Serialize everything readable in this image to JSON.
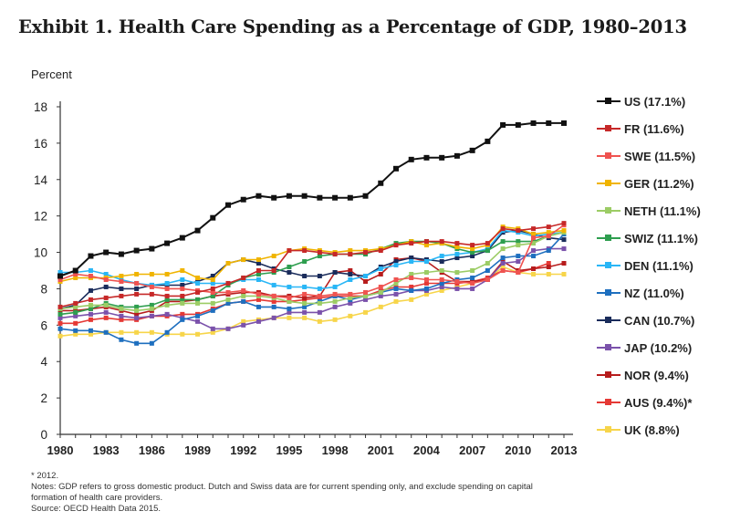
{
  "page": {
    "title": "Exhibit 1. Health Care Spending as a Percentage of GDP, 1980–2013",
    "footnotes": [
      "* 2012.",
      "Notes: GDP refers to gross domestic product. Dutch and Swiss data are for current spending only, and exclude spending on capital",
      "formation of health care providers.",
      "Source: OECD Health Data 2015."
    ]
  },
  "chart_data": {
    "type": "line",
    "title": "Exhibit 1. Health Care Spending as a Percentage of GDP, 1980–2013",
    "xlabel": "",
    "ylabel": "Percent",
    "ylim": [
      0,
      18
    ],
    "xlim": [
      1980,
      2013
    ],
    "yticks": [
      0,
      2,
      4,
      6,
      8,
      10,
      12,
      14,
      16,
      18
    ],
    "xticks": [
      1980,
      1983,
      1986,
      1989,
      1992,
      1995,
      1998,
      2001,
      2004,
      2007,
      2010,
      2013
    ],
    "grid": false,
    "legend_position": "right",
    "x": [
      1980,
      1981,
      1982,
      1983,
      1984,
      1985,
      1986,
      1987,
      1988,
      1989,
      1990,
      1991,
      1992,
      1993,
      1994,
      1995,
      1996,
      1997,
      1998,
      1999,
      2000,
      2001,
      2002,
      2003,
      2004,
      2005,
      2006,
      2007,
      2008,
      2009,
      2010,
      2011,
      2012,
      2013
    ],
    "series": [
      {
        "name": "US (17.1%)",
        "color": "#111111",
        "values": [
          8.7,
          9.0,
          9.8,
          10.0,
          9.9,
          10.1,
          10.2,
          10.5,
          10.8,
          11.2,
          11.9,
          12.6,
          12.9,
          13.1,
          13.0,
          13.1,
          13.1,
          13.0,
          13.0,
          13.0,
          13.1,
          13.8,
          14.6,
          15.1,
          15.2,
          15.2,
          15.3,
          15.6,
          16.1,
          17.0,
          17.0,
          17.1,
          17.1,
          17.1
        ]
      },
      {
        "name": "FR (11.6%)",
        "color": "#c62828",
        "values": [
          7.0,
          7.2,
          7.4,
          7.5,
          7.6,
          7.7,
          7.7,
          7.6,
          7.6,
          7.8,
          8.0,
          8.3,
          8.6,
          9.0,
          9.0,
          10.1,
          10.1,
          10.0,
          9.9,
          9.9,
          10.0,
          10.1,
          10.4,
          10.5,
          10.6,
          10.6,
          10.5,
          10.4,
          10.5,
          11.3,
          11.2,
          11.3,
          11.4,
          11.6
        ]
      },
      {
        "name": "SWE (11.5%)",
        "color": "#ef5350",
        "values": [
          8.5,
          8.8,
          8.7,
          8.5,
          8.4,
          8.3,
          8.1,
          8.0,
          8.0,
          7.9,
          7.8,
          7.8,
          7.9,
          7.7,
          7.6,
          7.5,
          7.7,
          7.6,
          7.7,
          7.7,
          7.8,
          8.1,
          8.5,
          8.6,
          8.5,
          8.5,
          8.4,
          8.3,
          8.5,
          9.0,
          8.9,
          10.8,
          10.9,
          11.5
        ]
      },
      {
        "name": "GER (11.2%)",
        "color": "#f0b400",
        "values": [
          8.4,
          8.6,
          8.6,
          8.6,
          8.7,
          8.8,
          8.8,
          8.8,
          9.0,
          8.6,
          8.5,
          9.4,
          9.6,
          9.6,
          9.8,
          10.1,
          10.2,
          10.1,
          10.0,
          10.1,
          10.1,
          10.2,
          10.4,
          10.6,
          10.4,
          10.5,
          10.3,
          10.2,
          10.4,
          11.4,
          11.3,
          11.0,
          11.1,
          11.2
        ]
      },
      {
        "name": "NETH (11.1%)",
        "color": "#9ccc65",
        "values": [
          6.9,
          7.0,
          7.1,
          7.1,
          6.9,
          6.8,
          6.9,
          7.1,
          7.2,
          7.2,
          7.2,
          7.4,
          7.6,
          7.6,
          7.5,
          7.3,
          7.2,
          7.2,
          7.3,
          7.5,
          7.6,
          7.8,
          8.3,
          8.8,
          8.9,
          9.0,
          8.9,
          9.0,
          9.4,
          10.2,
          10.4,
          10.5,
          10.9,
          11.1
        ]
      },
      {
        "name": "SWIZ (11.1%)",
        "color": "#2e9e4f",
        "values": [
          6.6,
          6.7,
          6.9,
          7.2,
          7.0,
          7.0,
          7.1,
          7.4,
          7.4,
          7.4,
          7.6,
          8.2,
          8.6,
          8.8,
          8.9,
          9.2,
          9.5,
          9.8,
          9.9,
          9.9,
          9.9,
          10.2,
          10.5,
          10.6,
          10.6,
          10.5,
          10.2,
          10.0,
          10.1,
          10.6,
          10.6,
          10.6,
          10.9,
          11.1
        ]
      },
      {
        "name": "DEN (11.1%)",
        "color": "#29b6f6",
        "values": [
          8.9,
          8.9,
          9.0,
          8.8,
          8.5,
          8.3,
          8.2,
          8.3,
          8.5,
          8.3,
          8.3,
          8.3,
          8.5,
          8.5,
          8.2,
          8.1,
          8.1,
          8.0,
          8.1,
          8.5,
          8.7,
          9.1,
          9.3,
          9.5,
          9.5,
          9.8,
          9.9,
          10.0,
          10.2,
          11.2,
          11.1,
          10.9,
          11.0,
          11.1
        ]
      },
      {
        "name": "NZ (11.0%)",
        "color": "#1e6fbf",
        "values": [
          5.8,
          5.7,
          5.7,
          5.6,
          5.2,
          5.0,
          5.0,
          5.6,
          6.3,
          6.5,
          6.8,
          7.2,
          7.3,
          7.0,
          7.0,
          6.9,
          7.0,
          7.3,
          7.6,
          7.4,
          7.6,
          7.8,
          8.0,
          7.9,
          8.0,
          8.3,
          8.5,
          8.6,
          9.0,
          9.7,
          9.8,
          9.8,
          10.1,
          11.0
        ]
      },
      {
        "name": "CAN (10.7%)",
        "color": "#1a2c5b",
        "values": [
          6.9,
          7.1,
          7.9,
          8.1,
          8.0,
          8.0,
          8.2,
          8.2,
          8.2,
          8.4,
          8.7,
          9.4,
          9.6,
          9.4,
          9.1,
          8.9,
          8.7,
          8.7,
          8.9,
          8.8,
          8.7,
          9.2,
          9.5,
          9.7,
          9.6,
          9.5,
          9.7,
          9.8,
          10.1,
          11.1,
          11.2,
          11.0,
          10.8,
          10.7
        ]
      },
      {
        "name": "JAP (10.2%)",
        "color": "#7b52ab",
        "values": [
          6.4,
          6.5,
          6.6,
          6.7,
          6.5,
          6.4,
          6.5,
          6.6,
          6.4,
          6.2,
          5.8,
          5.8,
          6.0,
          6.2,
          6.4,
          6.7,
          6.7,
          6.7,
          7.0,
          7.2,
          7.4,
          7.6,
          7.7,
          7.9,
          7.9,
          8.1,
          8.0,
          8.0,
          8.5,
          9.4,
          9.5,
          10.1,
          10.2,
          10.2
        ]
      },
      {
        "name": "NOR (9.4%)",
        "color": "#b71c1c",
        "values": [
          6.8,
          6.8,
          6.9,
          7.0,
          6.8,
          6.6,
          6.8,
          7.3,
          7.3,
          7.4,
          7.6,
          7.7,
          7.8,
          7.8,
          7.6,
          7.6,
          7.5,
          7.6,
          8.9,
          9.0,
          8.4,
          8.8,
          9.6,
          9.7,
          9.5,
          8.9,
          8.4,
          8.4,
          8.5,
          9.5,
          9.0,
          9.1,
          9.2,
          9.4
        ]
      },
      {
        "name": "AUS (9.4%)*",
        "color": "#e53935",
        "values": [
          6.1,
          6.1,
          6.3,
          6.4,
          6.3,
          6.3,
          6.5,
          6.5,
          6.6,
          6.6,
          6.9,
          7.2,
          7.3,
          7.4,
          7.3,
          7.3,
          7.4,
          7.5,
          7.6,
          7.6,
          7.6,
          7.9,
          8.1,
          8.1,
          8.3,
          8.3,
          8.3,
          8.4,
          8.6,
          9.0,
          8.9,
          9.1,
          9.4,
          null
        ]
      },
      {
        "name": "UK (8.8%)",
        "color": "#f7d54a",
        "values": [
          5.4,
          5.5,
          5.5,
          5.6,
          5.6,
          5.6,
          5.6,
          5.5,
          5.5,
          5.5,
          5.6,
          5.8,
          6.2,
          6.3,
          6.4,
          6.4,
          6.4,
          6.2,
          6.3,
          6.5,
          6.7,
          7.0,
          7.3,
          7.4,
          7.7,
          7.9,
          8.1,
          8.3,
          8.5,
          9.2,
          8.9,
          8.8,
          8.8,
          8.8
        ]
      }
    ]
  }
}
